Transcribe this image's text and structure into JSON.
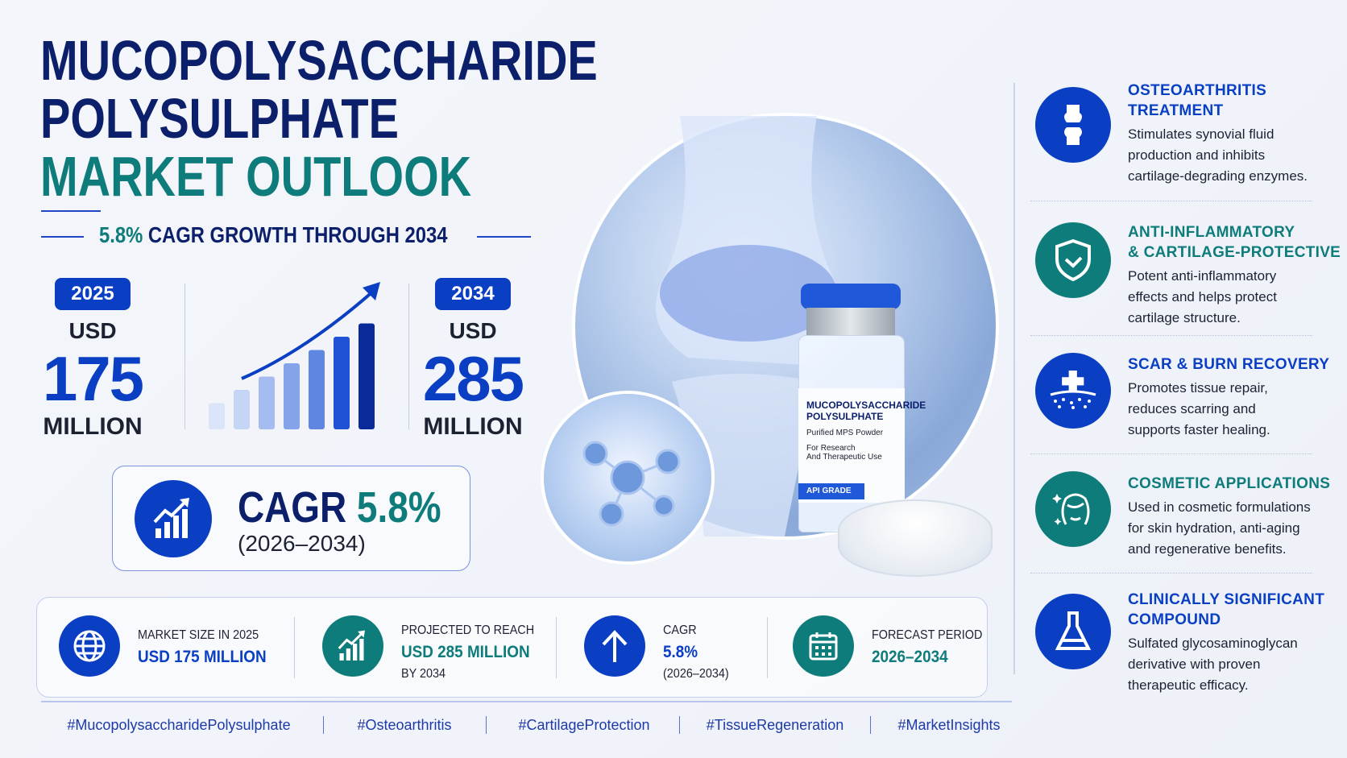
{
  "title": {
    "line1": "MUCOPOLYSACCHARIDE",
    "line2": "POLYSULPHATE",
    "line3": "MARKET OUTLOOK"
  },
  "subtitle": {
    "highlight": "5.8%",
    "text": "CAGR GROWTH THROUGH 2034"
  },
  "start": {
    "year": "2025",
    "currency": "USD",
    "value": "175",
    "unit": "MILLION"
  },
  "end": {
    "year": "2034",
    "currency": "USD",
    "value": "285",
    "unit": "MILLION"
  },
  "growth_bars": [
    1,
    2,
    3,
    4,
    5,
    6,
    7
  ],
  "cagr_box": {
    "label": "CAGR",
    "value": "5.8%",
    "period": "(2026–2034)",
    "icon": "growth-chart-icon"
  },
  "vial_label": {
    "line1": "MUCOPOLYSACCHARIDE",
    "line2": "POLYSULPHATE",
    "line3": "Purified MPS Powder",
    "line4": "For Research",
    "line5": "And Therapeutic Use",
    "grade": "API GRADE"
  },
  "summary": [
    {
      "icon": "globe-icon",
      "label": "MARKET SIZE IN 2025",
      "value": "USD 175 MILLION",
      "extra": "",
      "color": "#0a3fc4"
    },
    {
      "icon": "growth-chart-icon",
      "label": "PROJECTED TO REACH",
      "value": "USD 285 MILLION",
      "extra": "BY 2034",
      "color": "#0e7c7b"
    },
    {
      "icon": "arrow-up-icon",
      "label": "CAGR",
      "value": "5.8%",
      "extra": "(2026–2034)",
      "color": "#0a3fc4"
    },
    {
      "icon": "calendar-icon",
      "label": "FORECAST PERIOD",
      "value": "2026–2034",
      "extra": "",
      "color": "#0e7c7b"
    }
  ],
  "hashtags": [
    "#MucopolysaccharidePolysulphate",
    "#Osteoarthritis",
    "#CartilageProtection",
    "#TissueRegeneration",
    "#MarketInsights"
  ],
  "benefits": [
    {
      "icon": "knee-joint-icon",
      "title": "OSTEOARTHRITIS TREATMENT",
      "title_lines": [
        "OSTEOARTHRITIS",
        "TREATMENT"
      ],
      "desc_lines": [
        "Stimulates synovial fluid",
        "production and inhibits",
        "cartilage-degrading enzymes."
      ],
      "color": "#0a3fc4"
    },
    {
      "icon": "shield-check-icon",
      "title_lines": [
        "ANTI-INFLAMMATORY",
        "& CARTILAGE-PROTECTIVE"
      ],
      "desc_lines": [
        "Potent anti-inflammatory",
        "effects and helps protect",
        "cartilage structure."
      ],
      "color": "#0e7c7b"
    },
    {
      "icon": "skin-cross-icon",
      "title_lines": [
        "SCAR & BURN RECOVERY"
      ],
      "desc_lines": [
        "Promotes tissue repair,",
        "reduces scarring and",
        "supports faster healing."
      ],
      "color": "#0a3fc4"
    },
    {
      "icon": "face-sparkle-icon",
      "title_lines": [
        "COSMETIC APPLICATIONS"
      ],
      "desc_lines": [
        "Used in cosmetic formulations",
        "for skin hydration, anti-aging",
        "and regenerative benefits."
      ],
      "color": "#0e7c7b"
    },
    {
      "icon": "flask-icon",
      "title_lines": [
        "CLINICALLY SIGNIFICANT",
        "COMPOUND"
      ],
      "desc_lines": [
        "Sulfated glycosaminoglycan",
        "derivative with proven",
        "therapeutic efficacy."
      ],
      "color": "#0a3fc4"
    }
  ],
  "colors": {
    "navy": "#0b1f6b",
    "teal": "#0e7c7b",
    "blue": "#0a3fc4"
  }
}
